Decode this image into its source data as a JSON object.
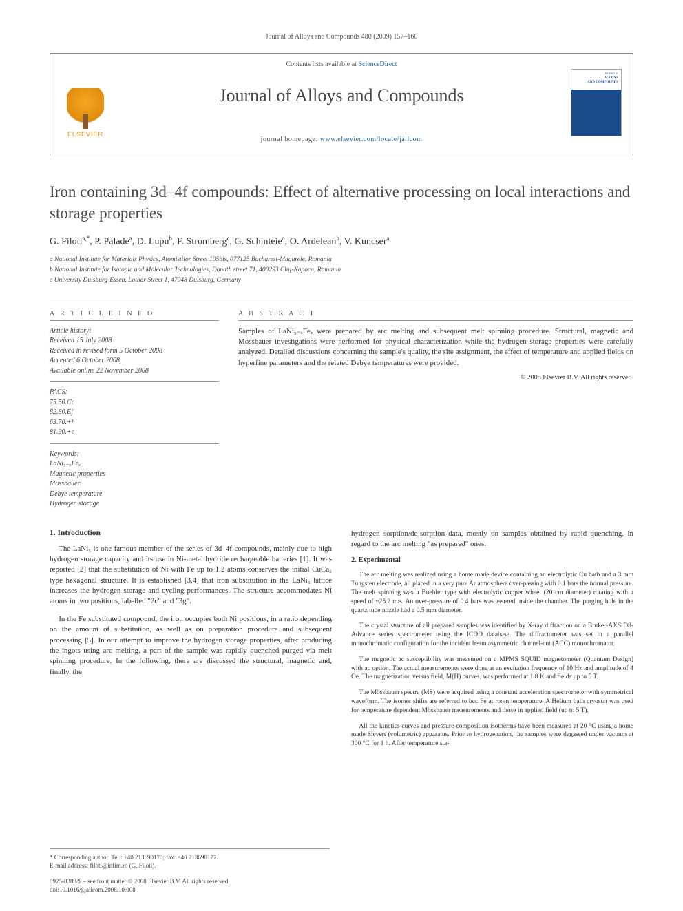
{
  "header": {
    "journal_ref": "Journal of Alloys and Compounds 480 (2009) 157–160",
    "contents_prefix": "Contents lists available at ",
    "contents_link": "ScienceDirect",
    "journal_title": "Journal of Alloys and Compounds",
    "homepage_prefix": "journal homepage: ",
    "homepage_url": "www.elsevier.com/locate/jallcom",
    "elsevier_wordmark": "ELSEVIER",
    "cover_label_top": "Journal of",
    "cover_label_main": "ALLOYS\nAND COMPOUNDS"
  },
  "article": {
    "title": "Iron containing 3d–4f compounds: Effect of alternative processing on local interactions and storage properties",
    "authors_html": "G. Filoti<sup>a,*</sup>, P. Palade<sup>a</sup>, D. Lupu<sup>b</sup>, F. Stromberg<sup>c</sup>, G. Schinteie<sup>a</sup>, O. Ardelean<sup>b</sup>, V. Kuncser<sup>a</sup>",
    "affiliations": [
      "a National Institute for Materials Physics, Atomistilor Street 105bis, 077125 Bucharest-Magurele, Romania",
      "b National Institute for Isotopic and Molecular Technologies, Donath street 71, 400293 Cluj-Napoca, Romania",
      "c University Duisburg-Essen, Lothar Street 1, 47048 Duisburg, Germany"
    ]
  },
  "info": {
    "head": "A R T I C L E   I N F O",
    "history_label": "Article history:",
    "history": [
      "Received 15 July 2008",
      "Received in revised form 5 October 2008",
      "Accepted 6 October 2008",
      "Available online 22 November 2008"
    ],
    "pacs_label": "PACS:",
    "pacs": [
      "75.50.Cc",
      "82.80.Ej",
      "63.70.+h",
      "81.90.+c"
    ],
    "keywords_label": "Keywords:",
    "keywords": [
      "LaNi₅₋ₓFeₓ",
      "Magnetic properties",
      "Mössbauer",
      "Debye temperature",
      "Hydrogen storage"
    ]
  },
  "abstract": {
    "head": "A B S T R A C T",
    "text": "Samples of LaNi₅₋ₓFeₓ were prepared by arc melting and subsequent melt spinning procedure. Structural, magnetic and Mössbauer investigations were performed for physical characterization while the hydrogen storage properties were carefully analyzed. Detailed discussions concerning the sample's quality, the site assignment, the effect of temperature and applied fields on hyperfine parameters and the related Debye temperatures were provided.",
    "copyright": "© 2008 Elsevier B.V. All rights reserved."
  },
  "sections": {
    "intro_head": "1. Introduction",
    "intro_p1": "The LaNi₅ is one famous member of the series of 3d–4f compounds, mainly due to high hydrogen storage capacity and its use in Ni-metal hydride rechargeable batteries [1]. It was reported [2] that the substitution of Ni with Fe up to 1.2 atoms conserves the initial CuCa₅ type hexagonal structure. It is established [3,4] that iron substitution in the LaNi₅ lattice increases the hydrogen storage and cycling performances. The structure accommodates Ni atoms in two positions, labelled \"2c\" and \"3g\".",
    "intro_p2": "In the Fe substituted compound, the iron occupies both Ni positions, in a ratio depending on the amount of substitution, as well as on preparation procedure and subsequent processing [5]. In our attempt to improve the hydrogen storage properties, after producing the ingots using arc melting, a part of the sample was rapidly quenched purged via melt spinning procedure. In the following, there are discussed the structural, magnetic and, finally, the",
    "intro_p3_colB": "hydrogen sorption/de-sorption data, mostly on samples obtained by rapid quenching, in regard to the arc melting \"as prepared\" ones.",
    "exp_head": "2. Experimental",
    "exp_p1": "The arc melting was realized using a home made device containing an electrolytic Cu bath and a 3 mm Tungsten electrode, all placed in a very pure Ar atmosphere over-passing with 0.1 bars the normal pressure. The melt spinning was a Buehler type with electrolytic copper wheel (20 cm diameter) rotating with a speed of ~25.2 m/s. An over-pressure of 0.4 bars was assured inside the chamber. The purging hole in the quartz tube nozzle had a 0.5 mm diameter.",
    "exp_p2": "The crystal structure of all prepared samples was identified by X-ray diffraction on a Bruker-AXS D8-Advance series spectrometer using the ICDD database. The diffractometer was set in a parallel monochromatic configuration for the incident beam asymmetric channel-cut (ACC) monochromator.",
    "exp_p3": "The magnetic ac susceptibility was measured on a MPMS SQUID magnetometer (Quantum Design) with ac option. The actual measurements were done at an excitation frequency of 10 Hz and amplitude of 4 Oe. The magnetization versus field, M(H) curves, was performed at 1.8 K and fields up to 5 T.",
    "exp_p4": "The Mössbauer spectra (MS) were acquired using a constant acceleration spectrometer with symmetrical waveform. The isomer shifts are referred to bcc Fe at room temperature. A Helium bath cryostat was used for temperature dependent Mössbauer measurements and those in applied field (up to 5 T).",
    "exp_p5": "All the kinetics curves and pressure-composition isotherms have been measured at 20 °C using a home made Sievert (volumetric) apparatus. Prior to hydrogenation, the samples were degassed under vacuum at 300 °C for 1 h. After temperature sta-"
  },
  "footer": {
    "corr_line1": "* Corresponding author. Tel.: +40 213690170; fax: +40 213690177.",
    "corr_line2": "E-mail address: filoti@infim.ro (G. Filoti).",
    "issn": "0925-8388/$ – see front matter © 2008 Elsevier B.V. All rights reserved.",
    "doi": "doi:10.1016/j.jallcom.2008.10.008"
  },
  "colors": {
    "link": "#2a6496",
    "rule": "#999999",
    "text": "#333333",
    "elsevier_orange": "#e08e0b",
    "cover_blue": "#1a4b8c"
  }
}
